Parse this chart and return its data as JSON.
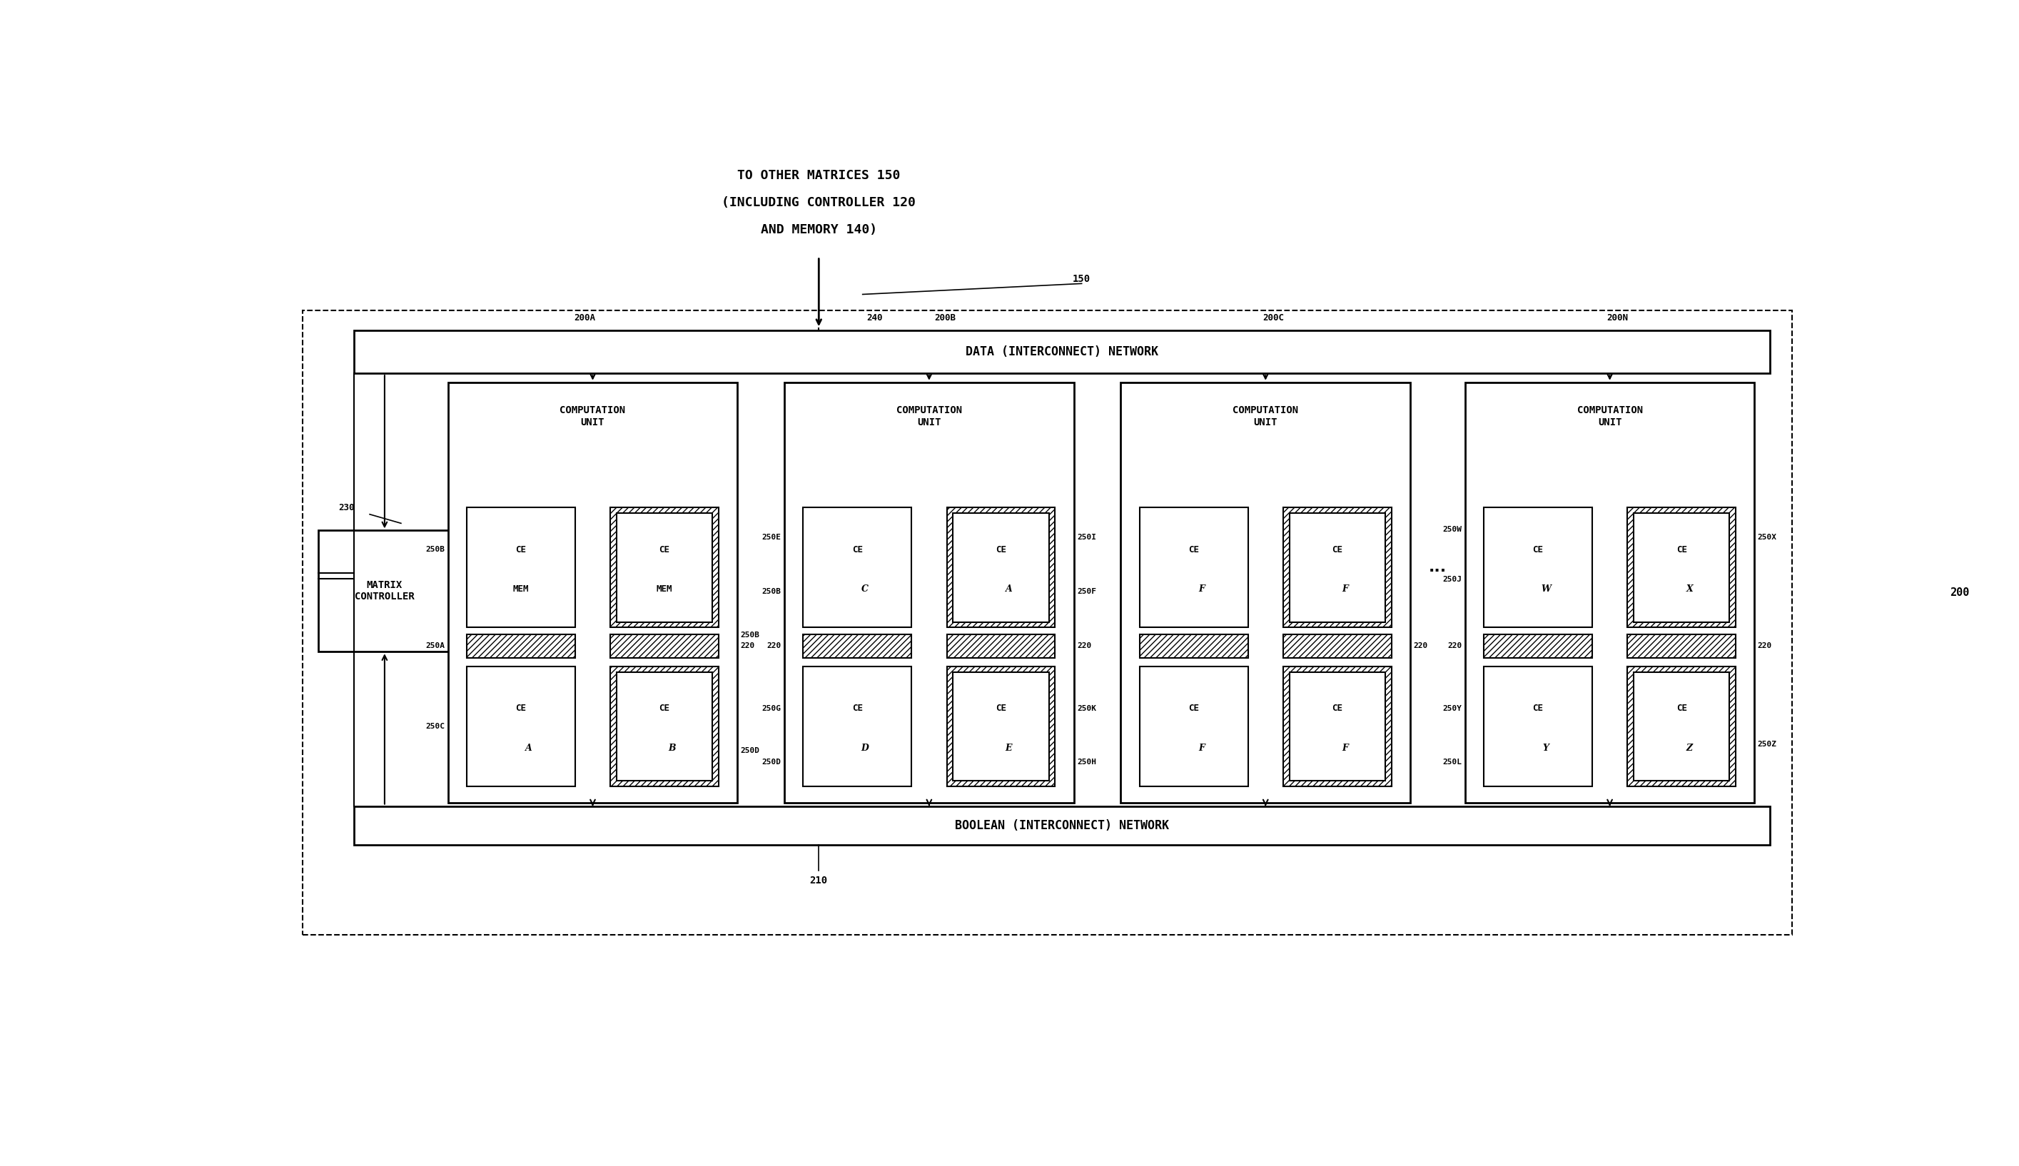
{
  "bg_color": "#ffffff",
  "fig_w": 28.29,
  "fig_h": 16.34,
  "title1": "TO OTHER MATRICES 150",
  "title2": "(INCLUDING CONTROLLER 120",
  "title3": "AND MEMORY 140)",
  "lbl_150": "150",
  "lbl_230": "230",
  "lbl_200A": "200A",
  "lbl_200B": "200B",
  "lbl_200C": "200C",
  "lbl_200N": "200N",
  "lbl_240": "240",
  "lbl_210": "210",
  "lbl_200": "200",
  "lbl_220a": "220",
  "lbl_220b": "220",
  "lbl_220c": "220",
  "lbl_220d": "220",
  "lbl_250A": "250A",
  "lbl_250B": "250B",
  "lbl_250C": "250C",
  "lbl_250D": "250D",
  "lbl_250E": "250E",
  "lbl_250F": "250F",
  "lbl_250G": "250G",
  "lbl_250H": "250H",
  "lbl_250I": "250I",
  "lbl_250J": "250J",
  "lbl_250K": "250K",
  "lbl_250L": "250L",
  "lbl_250W": "250W",
  "lbl_250X": "250X",
  "lbl_250Y": "250Y",
  "lbl_250Z": "250Z",
  "data_net": "DATA (INTERCONNECT) NETWORK",
  "bool_net": "BOOLEAN (INTERCONNECT) NETWORK",
  "mc_text": "MATRIX\nCONTROLLER",
  "cu_text": "COMPUTATION\nUNIT",
  "dots": "...",
  "ce_subs": [
    "MEM",
    "MEM",
    "A",
    "B",
    "C",
    "A",
    "D",
    "E",
    "F",
    "F",
    "F",
    "F",
    "W",
    "X",
    "Y",
    "Z"
  ]
}
